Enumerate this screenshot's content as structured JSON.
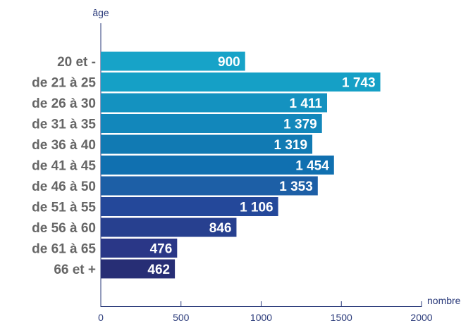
{
  "chart_data": {
    "type": "bar",
    "orientation": "horizontal",
    "ylabel": "âge",
    "xlabel": "nombre",
    "categories": [
      "20 et -",
      "de 21 à 25",
      "de 26 à 30",
      "de 31 à 35",
      "de 36 à 40",
      "de 41 à 45",
      "de 46 à 50",
      "de 51 à 55",
      "de 56 à 60",
      "de 61 à 65",
      "66 et +"
    ],
    "values": [
      900,
      1743,
      1411,
      1379,
      1319,
      1454,
      1353,
      1106,
      846,
      476,
      462
    ],
    "value_labels": [
      "900",
      "1 743",
      "1 411",
      "1 379",
      "1 319",
      "1 454",
      "1 353",
      "1 106",
      "846",
      "476",
      "462"
    ],
    "xlim": [
      0,
      2000
    ],
    "xticks": [
      0,
      500,
      1000,
      1500,
      2000
    ],
    "xtick_labels": [
      "0",
      "500",
      "1000",
      "1500",
      "2000"
    ],
    "grid": false,
    "legend": "none",
    "bar_colors": [
      "#17a3c8",
      "#15a0c6",
      "#1492c0",
      "#1287bb",
      "#117ab3",
      "#1070b0",
      "#1d5fa6",
      "#24489a",
      "#27408f",
      "#2a3787",
      "#272e75"
    ],
    "axis_color": "#2a3a7a",
    "label_color": "#666666"
  }
}
